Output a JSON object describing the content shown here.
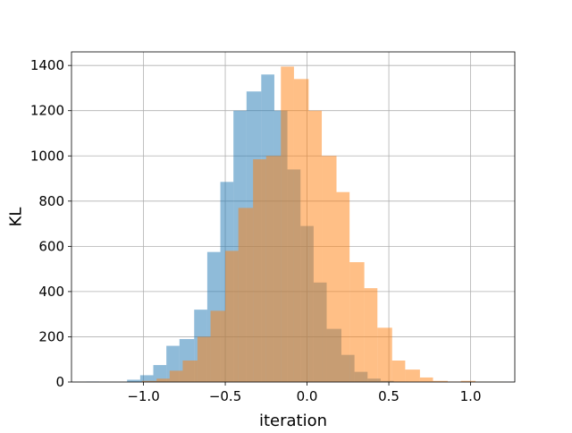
{
  "chart_data": {
    "type": "bar",
    "xlabel": "iteration",
    "ylabel": "KL",
    "xlim": [
      -1.44,
      1.27
    ],
    "ylim": [
      0,
      1460
    ],
    "xticks": [
      -1.0,
      -0.5,
      0.0,
      0.5,
      1.0
    ],
    "xtick_labels": [
      "−1.0",
      "−0.5",
      "0.0",
      "0.5",
      "1.0"
    ],
    "yticks": [
      0,
      200,
      400,
      600,
      800,
      1000,
      1200,
      1400
    ],
    "ytick_labels": [
      "0",
      "200",
      "400",
      "600",
      "800",
      "1000",
      "1200",
      "1400"
    ],
    "grid": true,
    "series": [
      {
        "color": "#1f77b4",
        "opacity": 0.5,
        "bin_edges": [
          -1.35,
          -1.27,
          -1.19,
          -1.1,
          -1.02,
          -0.94,
          -0.86,
          -0.78,
          -0.69,
          -0.61,
          -0.53,
          -0.45,
          -0.37,
          -0.28,
          -0.2,
          -0.12,
          -0.04,
          0.04,
          0.12,
          0.21,
          0.29,
          0.37,
          0.45,
          0.53,
          0.62,
          0.7,
          0.78,
          0.86,
          0.94,
          1.02,
          1.11
        ],
        "counts": [
          2,
          0,
          0,
          10,
          30,
          75,
          160,
          190,
          320,
          575,
          885,
          1200,
          1285,
          1360,
          1200,
          940,
          690,
          440,
          235,
          120,
          45,
          15,
          5,
          1,
          0,
          0,
          0,
          0,
          0,
          0
        ]
      },
      {
        "color": "#ff7f0e",
        "opacity": 0.5,
        "bin_edges": [
          -1.01,
          -0.92,
          -0.84,
          -0.76,
          -0.67,
          -0.59,
          -0.5,
          -0.42,
          -0.33,
          -0.25,
          -0.16,
          -0.08,
          0.01,
          0.09,
          0.18,
          0.26,
          0.35,
          0.43,
          0.52,
          0.6,
          0.69,
          0.77,
          0.86,
          0.94,
          1.03,
          1.11,
          1.2
        ],
        "counts": [
          5,
          15,
          50,
          95,
          200,
          315,
          580,
          770,
          985,
          1000,
          1395,
          1340,
          1200,
          1000,
          840,
          530,
          415,
          240,
          95,
          55,
          20,
          5,
          2,
          5,
          1,
          1
        ]
      }
    ]
  }
}
